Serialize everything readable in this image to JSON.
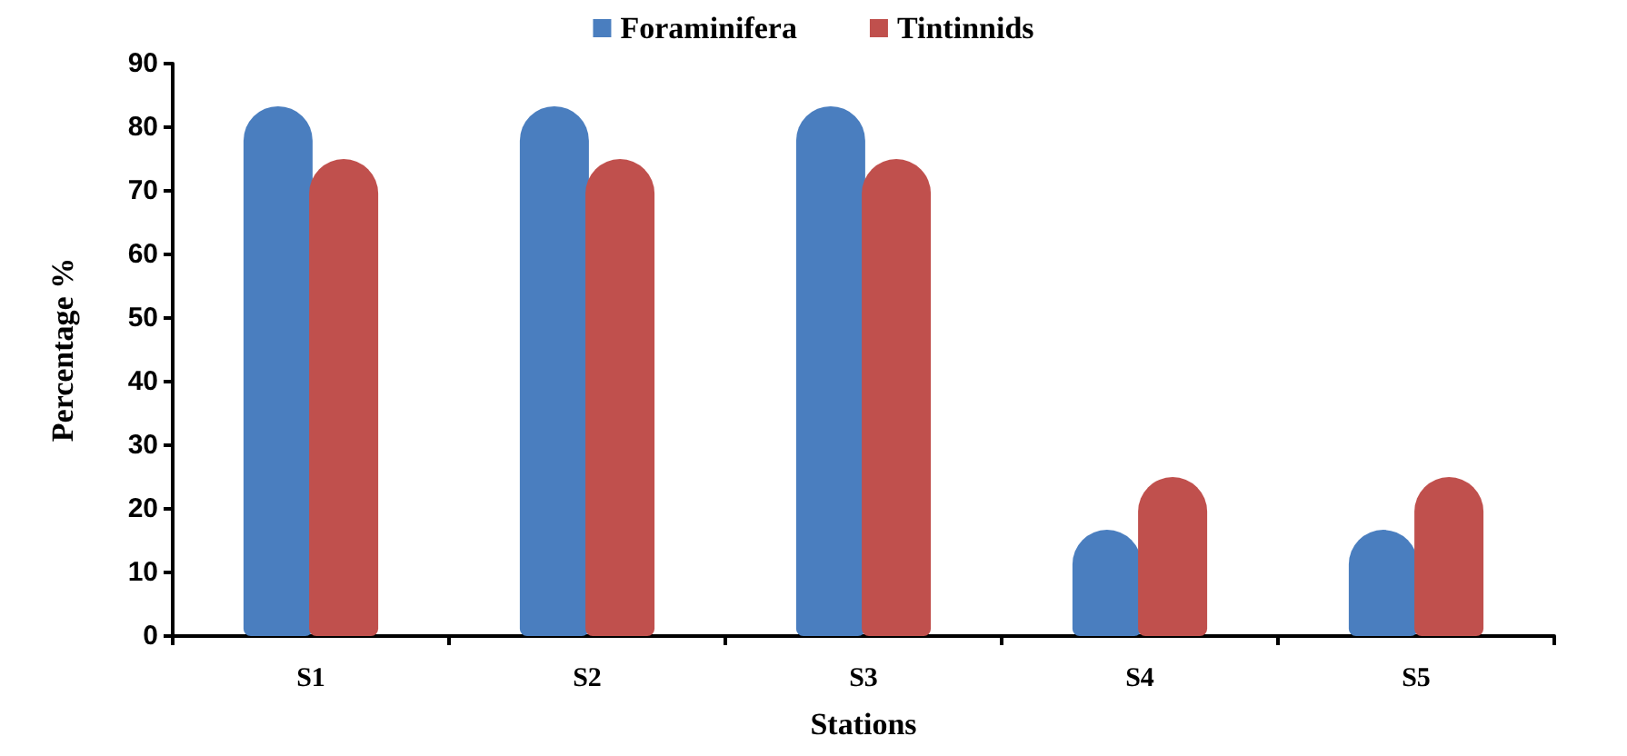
{
  "chart_data": {
    "type": "bar",
    "xlabel": "Stations",
    "ylabel": "Percentage %",
    "categories": [
      "S1",
      "S2",
      "S3",
      "S4",
      "S5"
    ],
    "series": [
      {
        "name": "Foraminifera",
        "color": "#4a7ebf",
        "values": [
          83.3,
          83.3,
          83.3,
          16.7,
          16.7
        ]
      },
      {
        "name": "Tintinnids",
        "color": "#c0504d",
        "values": [
          75,
          75,
          75,
          25,
          25
        ]
      }
    ],
    "ylim": [
      0,
      90
    ],
    "yticks": [
      0,
      10,
      20,
      30,
      40,
      50,
      60,
      70,
      80,
      90
    ],
    "grid": false,
    "legend": "top"
  }
}
